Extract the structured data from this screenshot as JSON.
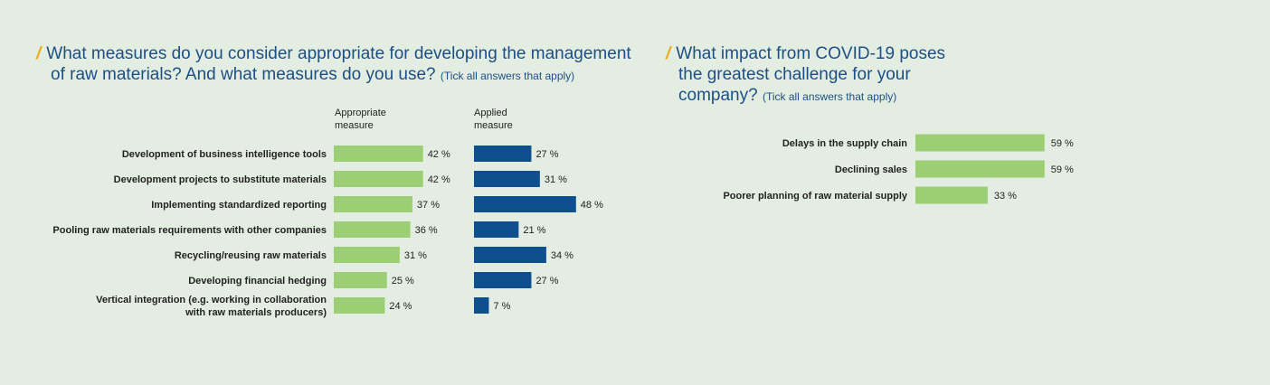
{
  "colors": {
    "appropriate": "#9ccf74",
    "applied": "#0d4f8f",
    "title": "#1b4f86",
    "slash": "#f0a81c"
  },
  "left": {
    "title_line1": "What measures do you consider appropriate for developing the management",
    "title_line2": "of raw materials? And what measures do you use?",
    "note": "(Tick all answers that apply)",
    "slash": "/"
  },
  "right": {
    "title_line1": "What impact from COVID-19 poses",
    "title_line2": "the greatest challenge for your",
    "title_line3": "company?",
    "note": "(Tick all answers that apply)",
    "slash": "/"
  },
  "chart_data": [
    {
      "type": "bar",
      "orientation": "horizontal",
      "categories": [
        "Development of business intelligence tools",
        "Development projects to substitute materials",
        "Implementing standardized reporting",
        "Pooling raw materials requirements with other companies",
        "Recycling/reusing raw materials",
        "Developing financial hedging",
        "Vertical integration (e.g. working in collaboration\nwith raw materials producers)"
      ],
      "series": [
        {
          "name": "Appropriate\nmeasure",
          "values": [
            42,
            42,
            37,
            36,
            31,
            25,
            24
          ],
          "labels": [
            "42 %",
            "42 %",
            "37 %",
            "36 %",
            "31 %",
            "25 %",
            "24 %"
          ]
        },
        {
          "name": "Applied\nmeasure",
          "values": [
            27,
            31,
            48,
            21,
            34,
            27,
            7
          ],
          "labels": [
            "27 %",
            "31 %",
            "48 %",
            "21 %",
            "34 %",
            "27 %",
            "7 %"
          ]
        }
      ],
      "grid": false
    },
    {
      "type": "bar",
      "orientation": "horizontal",
      "categories": [
        "Delays in the supply chain",
        "Declining sales",
        "Poorer planning of raw material supply"
      ],
      "series": [
        {
          "values": [
            59,
            59,
            33
          ],
          "labels": [
            "59 %",
            "59 %",
            "33 %"
          ]
        }
      ],
      "grid": false
    }
  ]
}
